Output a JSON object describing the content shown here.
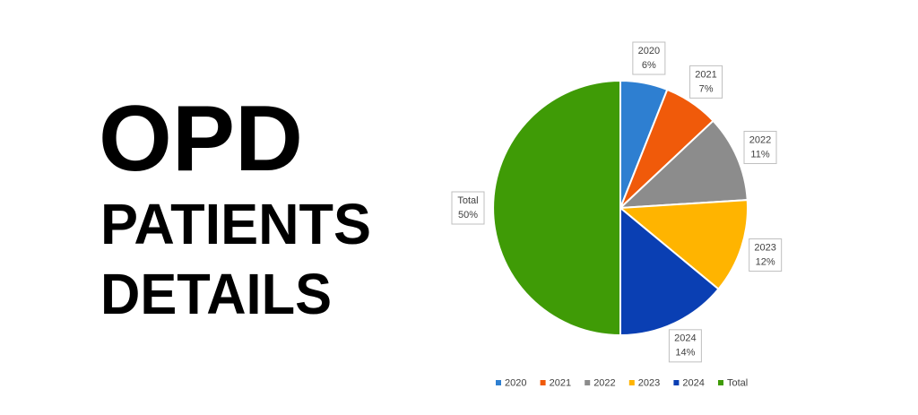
{
  "heading": {
    "lines": [
      "OPD",
      "PATIENTS",
      "DETAILS"
    ]
  },
  "chart_data": {
    "type": "pie",
    "categories": [
      "2020",
      "2021",
      "2022",
      "2023",
      "2024",
      "Total"
    ],
    "values": [
      6,
      7,
      11,
      12,
      14,
      50
    ],
    "value_labels": [
      "6%",
      "7%",
      "11%",
      "12%",
      "14%",
      "50%"
    ],
    "colors": [
      "#2e7fd1",
      "#f05a0a",
      "#8c8c8c",
      "#ffb400",
      "#0a3fb3",
      "#3f9b06"
    ],
    "legend": "bottom"
  }
}
